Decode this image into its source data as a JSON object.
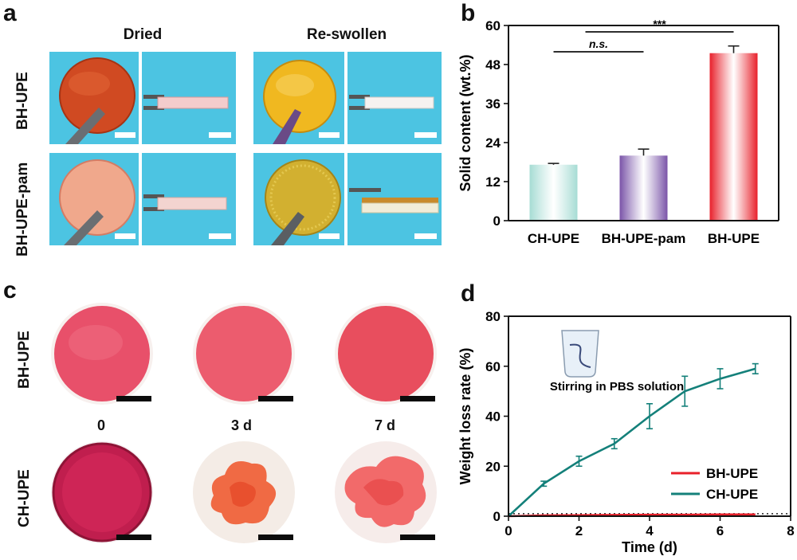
{
  "panels": {
    "a": "a",
    "b": "b",
    "c": "c",
    "d": "d"
  },
  "panel_a": {
    "columns": [
      "Dried",
      "Re-swollen"
    ],
    "rows": [
      "BH-UPE",
      "BH-UPE-pam"
    ]
  },
  "panel_c": {
    "rows": [
      "BH-UPE",
      "CH-UPE"
    ],
    "times": [
      "0",
      "3 d",
      "7 d"
    ]
  },
  "colors": {
    "photo_bg": "#4cc4e2",
    "teal": "#14807a",
    "red": "#e8202a",
    "purple": "#7a54a8",
    "mint": "#a6dcd4"
  },
  "chart_data": [
    {
      "type": "bar",
      "categories": [
        "CH-UPE",
        "BH-UPE-pam",
        "BH-UPE"
      ],
      "values": [
        17.2,
        20.0,
        51.5
      ],
      "errors": [
        0.4,
        2.0,
        2.2
      ],
      "ylabel": "Solid content (wt.%)",
      "ylim": [
        0,
        60
      ],
      "yticks": [
        0,
        12,
        24,
        36,
        48,
        60
      ],
      "bar_colors": [
        "#a6dcd4",
        "#7a54a8",
        "#e8202a"
      ],
      "significance": [
        {
          "from": 0,
          "to": 1,
          "label": "n.s."
        },
        {
          "from": 0,
          "to": 2,
          "label": "***"
        }
      ]
    },
    {
      "type": "line",
      "xlabel": "Time (d)",
      "ylabel": "Weight loss rate (%)",
      "xlim": [
        0,
        8
      ],
      "ylim": [
        0,
        80
      ],
      "xticks": [
        0,
        2,
        4,
        6,
        8
      ],
      "yticks": [
        0,
        20,
        40,
        60,
        80
      ],
      "annotation": "Stirring in PBS solution",
      "legend_position": "bottom-right",
      "series": [
        {
          "name": "BH-UPE",
          "color": "#e8202a",
          "x": [
            0,
            1,
            2,
            3,
            4,
            5,
            6,
            7
          ],
          "y": [
            0,
            0.3,
            0.4,
            0.5,
            0.6,
            0.6,
            0.7,
            0.7
          ],
          "err": [
            0,
            0,
            0,
            0,
            0,
            0,
            0,
            0
          ]
        },
        {
          "name": "CH-UPE",
          "color": "#14807a",
          "x": [
            0,
            1,
            2,
            3,
            4,
            5,
            6,
            7
          ],
          "y": [
            0,
            13,
            22,
            29,
            40,
            50,
            55,
            59
          ],
          "err": [
            0,
            1,
            2,
            2,
            5,
            6,
            4,
            2
          ]
        }
      ]
    }
  ]
}
